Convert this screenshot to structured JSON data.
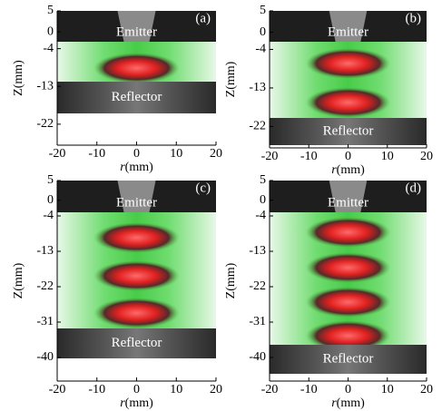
{
  "chart_data": [
    {
      "type": "image",
      "panel_label": "(a)",
      "emitter": "Emitter",
      "reflector": "Reflector",
      "y_label": "Z(mm)",
      "x_label_var": "r",
      "x_label_unit": "(mm)",
      "xlim": [
        -20,
        20
      ],
      "xticks": [
        -20,
        -10,
        0,
        10,
        20
      ],
      "ylim": [
        -27,
        5
      ],
      "yticks": [
        5,
        0,
        -4,
        -13,
        -22
      ]
    },
    {
      "type": "image",
      "panel_label": "(b)",
      "emitter": "Emitter",
      "reflector": "Reflector",
      "y_label": "Z(mm)",
      "x_label_var": "r",
      "x_label_unit": "(mm)",
      "xlim": [
        -20,
        20
      ],
      "xticks": [
        -20,
        -10,
        0,
        10,
        20
      ],
      "ylim": [
        -27,
        5
      ],
      "yticks": [
        5,
        0,
        -4,
        -13,
        -22
      ]
    },
    {
      "type": "image",
      "panel_label": "(c)",
      "emitter": "Emitter",
      "reflector": "Reflector",
      "y_label": "Z(mm)",
      "x_label_var": "r",
      "x_label_unit": "(mm)",
      "xlim": [
        -20,
        20
      ],
      "xticks": [
        -20,
        -10,
        0,
        10,
        20
      ],
      "ylim": [
        -46,
        5
      ],
      "yticks": [
        5,
        0,
        -4,
        -13,
        -22,
        -31,
        -40
      ]
    },
    {
      "type": "image",
      "panel_label": "(d)",
      "emitter": "Emitter",
      "reflector": "Reflector",
      "y_label": "Z(mm)",
      "x_label_var": "r",
      "x_label_unit": "(mm)",
      "xlim": [
        -20,
        20
      ],
      "xticks": [
        -20,
        -10,
        0,
        10,
        20
      ],
      "ylim": [
        -46,
        5
      ],
      "yticks": [
        5,
        0,
        -4,
        -13,
        -22,
        -31,
        -40
      ]
    }
  ]
}
